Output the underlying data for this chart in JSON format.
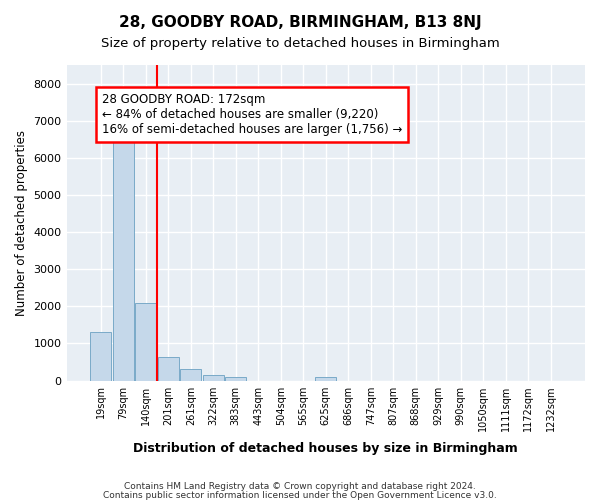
{
  "title": "28, GOODBY ROAD, BIRMINGHAM, B13 8NJ",
  "subtitle": "Size of property relative to detached houses in Birmingham",
  "xlabel": "Distribution of detached houses by size in Birmingham",
  "ylabel": "Number of detached properties",
  "footnote1": "Contains HM Land Registry data © Crown copyright and database right 2024.",
  "footnote2": "Contains public sector information licensed under the Open Government Licence v3.0.",
  "bar_color": "#c5d8ea",
  "bar_edge_color": "#7aaac8",
  "background_color": "#e8eef4",
  "grid_color": "#ffffff",
  "categories": [
    "19sqm",
    "79sqm",
    "140sqm",
    "201sqm",
    "261sqm",
    "322sqm",
    "383sqm",
    "443sqm",
    "504sqm",
    "565sqm",
    "625sqm",
    "686sqm",
    "747sqm",
    "807sqm",
    "868sqm",
    "929sqm",
    "990sqm",
    "1050sqm",
    "1111sqm",
    "1172sqm",
    "1232sqm"
  ],
  "values": [
    1300,
    6600,
    2100,
    630,
    310,
    160,
    100,
    0,
    0,
    0,
    100,
    0,
    0,
    0,
    0,
    0,
    0,
    0,
    0,
    0,
    0
  ],
  "ylim": [
    0,
    8500
  ],
  "yticks": [
    0,
    1000,
    2000,
    3000,
    4000,
    5000,
    6000,
    7000,
    8000
  ],
  "red_line_x": 2.5,
  "annotation_line1": "28 GOODBY ROAD: 172sqm",
  "annotation_line2": "← 84% of detached houses are smaller (9,220)",
  "annotation_line3": "16% of semi-detached houses are larger (1,756) →"
}
